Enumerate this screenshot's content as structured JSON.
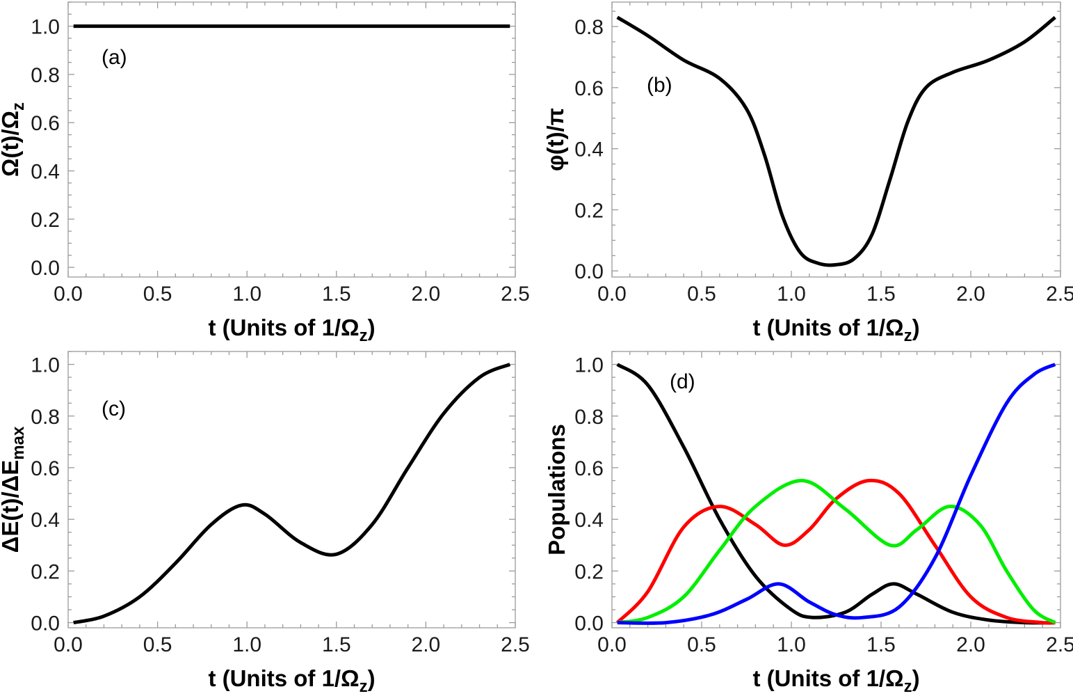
{
  "chart_data": [
    {
      "id": "a",
      "type": "line",
      "panel_label": "(a)",
      "xlabel": "t (Units of 1/Ωz)",
      "ylabel": "Ω(t)/Ωz",
      "xlim": [
        0,
        2.5
      ],
      "ylim": [
        -0.04,
        1.1
      ],
      "xticks": [
        0.0,
        0.5,
        1.0,
        1.5,
        2.0,
        2.5
      ],
      "xtick_labels": [
        "0.0",
        "0.5",
        "1.0",
        "1.5",
        "2.0",
        "2.5"
      ],
      "yticks": [
        0.0,
        0.2,
        0.4,
        0.6,
        0.8,
        1.0
      ],
      "ytick_labels": [
        "0.0",
        "0.2",
        "0.4",
        "0.6",
        "0.8",
        "1.0"
      ],
      "series": [
        {
          "name": "Ω(t)/Ωz",
          "color": "#000000",
          "x": [
            0.03,
            0.5,
            1.0,
            1.5,
            2.0,
            2.47
          ],
          "y": [
            1.0,
            1.0,
            1.0,
            1.0,
            1.0,
            1.0
          ]
        }
      ]
    },
    {
      "id": "b",
      "type": "line",
      "panel_label": "(b)",
      "xlabel": "t (Units of 1/Ωz)",
      "ylabel": "φ(t)/π",
      "xlim": [
        0,
        2.5
      ],
      "ylim": [
        -0.02,
        0.88
      ],
      "xticks": [
        0.0,
        0.5,
        1.0,
        1.5,
        2.0,
        2.5
      ],
      "xtick_labels": [
        "0.0",
        "0.5",
        "1.0",
        "1.5",
        "2.0",
        "2.5"
      ],
      "yticks": [
        0.0,
        0.2,
        0.4,
        0.6,
        0.8
      ],
      "ytick_labels": [
        "0.0",
        "0.2",
        "0.4",
        "0.6",
        "0.8"
      ],
      "series": [
        {
          "name": "φ(t)/π",
          "color": "#000000",
          "x": [
            0.03,
            0.2,
            0.4,
            0.6,
            0.75,
            0.85,
            0.95,
            1.05,
            1.15,
            1.25,
            1.35,
            1.45,
            1.55,
            1.65,
            1.75,
            1.9,
            2.1,
            2.3,
            2.47
          ],
          "y": [
            0.83,
            0.77,
            0.69,
            0.63,
            0.53,
            0.38,
            0.18,
            0.06,
            0.025,
            0.02,
            0.04,
            0.12,
            0.3,
            0.49,
            0.6,
            0.65,
            0.69,
            0.75,
            0.83
          ]
        }
      ]
    },
    {
      "id": "c",
      "type": "line",
      "panel_label": "(c)",
      "xlabel": "t (Units of 1/Ωz)",
      "ylabel": "ΔE(t)/ΔEmax",
      "xlim": [
        0,
        2.5
      ],
      "ylim": [
        -0.02,
        1.05
      ],
      "xticks": [
        0.0,
        0.5,
        1.0,
        1.5,
        2.0,
        2.5
      ],
      "xtick_labels": [
        "0.0",
        "0.5",
        "1.0",
        "1.5",
        "2.0",
        "2.5"
      ],
      "yticks": [
        0.0,
        0.2,
        0.4,
        0.6,
        0.8,
        1.0
      ],
      "ytick_labels": [
        "0.0",
        "0.2",
        "0.4",
        "0.6",
        "0.8",
        "1.0"
      ],
      "series": [
        {
          "name": "ΔE(t)/ΔEmax",
          "color": "#000000",
          "x": [
            0.03,
            0.2,
            0.4,
            0.6,
            0.8,
            0.97,
            1.1,
            1.3,
            1.5,
            1.7,
            1.9,
            2.1,
            2.3,
            2.47
          ],
          "y": [
            0.0,
            0.025,
            0.1,
            0.23,
            0.38,
            0.455,
            0.42,
            0.31,
            0.265,
            0.38,
            0.6,
            0.81,
            0.95,
            1.0
          ]
        }
      ]
    },
    {
      "id": "d",
      "type": "line",
      "panel_label": "(d)",
      "xlabel": "t (Units of 1/Ωz)",
      "ylabel": "Populations",
      "xlim": [
        0,
        2.5
      ],
      "ylim": [
        -0.02,
        1.05
      ],
      "xticks": [
        0.0,
        0.5,
        1.0,
        1.5,
        2.0,
        2.5
      ],
      "xtick_labels": [
        "0.0",
        "0.5",
        "1.0",
        "1.5",
        "2.0",
        "2.5"
      ],
      "yticks": [
        0.0,
        0.2,
        0.4,
        0.6,
        0.8,
        1.0
      ],
      "ytick_labels": [
        "0.0",
        "0.2",
        "0.4",
        "0.6",
        "0.8",
        "1.0"
      ],
      "series": [
        {
          "name": "black",
          "color": "#000000",
          "x": [
            0.03,
            0.2,
            0.4,
            0.6,
            0.8,
            1.0,
            1.12,
            1.3,
            1.45,
            1.57,
            1.7,
            1.9,
            2.1,
            2.3,
            2.47
          ],
          "y": [
            1.0,
            0.92,
            0.68,
            0.4,
            0.18,
            0.05,
            0.02,
            0.04,
            0.11,
            0.15,
            0.11,
            0.04,
            0.01,
            0.0,
            0.0
          ]
        },
        {
          "name": "red",
          "color": "#ff0000",
          "x": [
            0.03,
            0.2,
            0.4,
            0.6,
            0.8,
            0.96,
            1.1,
            1.25,
            1.43,
            1.6,
            1.8,
            2.0,
            2.2,
            2.4,
            2.47
          ],
          "y": [
            0.0,
            0.12,
            0.37,
            0.45,
            0.38,
            0.3,
            0.36,
            0.48,
            0.55,
            0.5,
            0.3,
            0.1,
            0.02,
            0.0,
            0.0
          ]
        },
        {
          "name": "green",
          "color": "#00ee00",
          "x": [
            0.03,
            0.2,
            0.4,
            0.6,
            0.8,
            1.06,
            1.3,
            1.55,
            1.7,
            1.88,
            2.05,
            2.2,
            2.35,
            2.47
          ],
          "y": [
            0.0,
            0.02,
            0.1,
            0.28,
            0.45,
            0.55,
            0.44,
            0.3,
            0.36,
            0.45,
            0.38,
            0.2,
            0.05,
            0.0
          ]
        },
        {
          "name": "blue",
          "color": "#0000ff",
          "x": [
            0.03,
            0.3,
            0.55,
            0.75,
            0.93,
            1.1,
            1.25,
            1.4,
            1.6,
            1.8,
            2.0,
            2.2,
            2.35,
            2.47
          ],
          "y": [
            0.0,
            0.0,
            0.03,
            0.09,
            0.15,
            0.08,
            0.03,
            0.02,
            0.06,
            0.25,
            0.57,
            0.85,
            0.96,
            1.0
          ]
        }
      ]
    }
  ]
}
